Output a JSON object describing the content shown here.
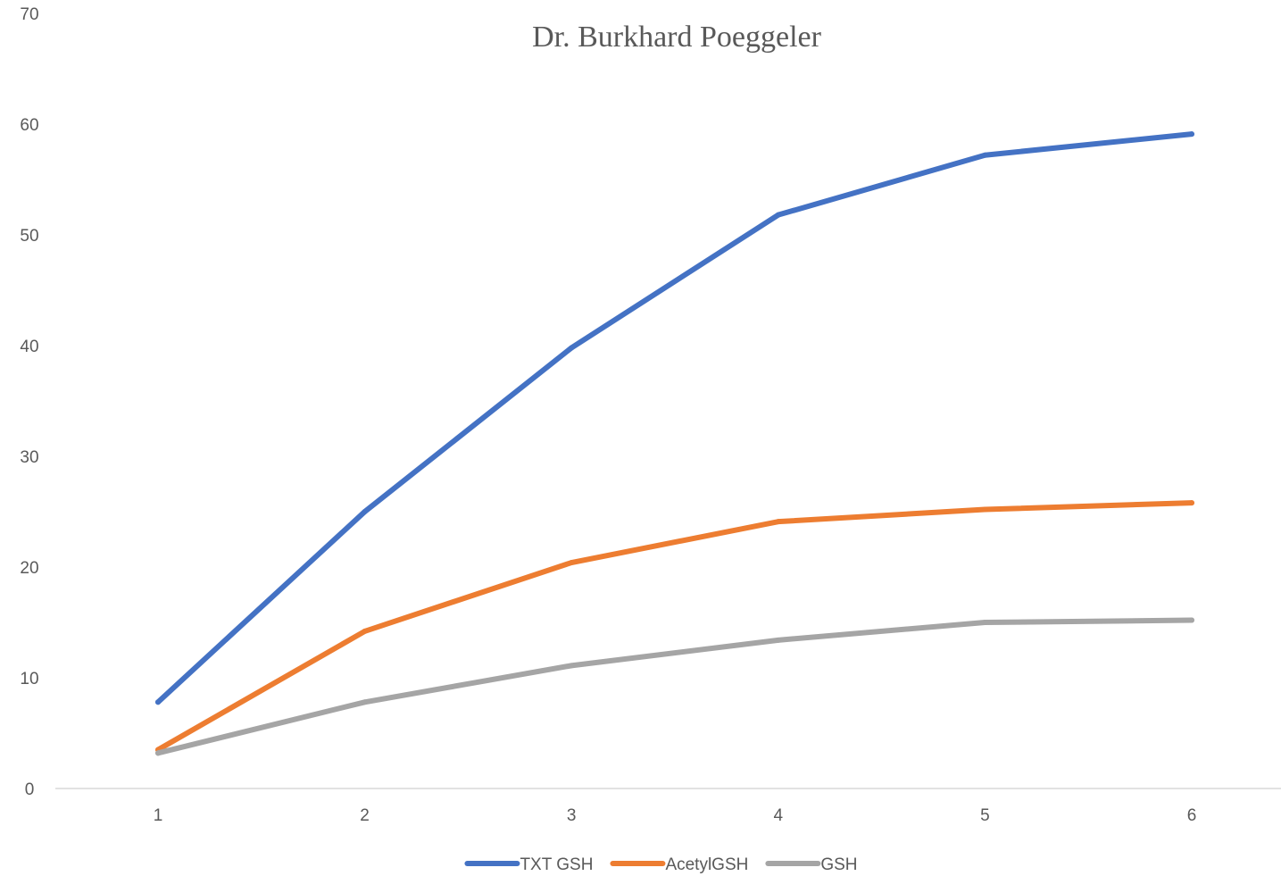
{
  "chart_data": {
    "type": "line",
    "title": "Dr. Burkhard Poeggeler",
    "xlabel": "",
    "ylabel": "",
    "categories": [
      "1",
      "2",
      "3",
      "4",
      "5",
      "6"
    ],
    "ylim": [
      0,
      70
    ],
    "yticks": [
      0,
      10,
      20,
      30,
      40,
      50,
      60,
      70
    ],
    "grid": false,
    "legend": "bottom",
    "series": [
      {
        "name": "TXT GSH",
        "color": "#4472C4",
        "values": [
          7.8,
          25,
          39.8,
          51.8,
          57.2,
          59.1
        ]
      },
      {
        "name": "AcetylGSH",
        "color": "#ED7D31",
        "values": [
          3.5,
          14.2,
          20.4,
          24.1,
          25.2,
          25.8
        ]
      },
      {
        "name": "GSH",
        "color": "#A5A5A5",
        "values": [
          3.2,
          7.8,
          11.1,
          13.4,
          15.0,
          15.2
        ]
      }
    ]
  }
}
